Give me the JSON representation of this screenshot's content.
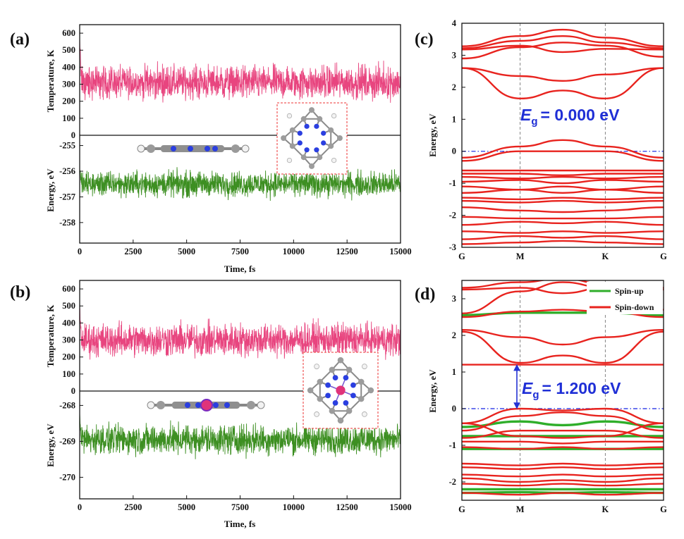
{
  "colors": {
    "temperature": "#e8457f",
    "energy": "#3d8f22",
    "band": "#e8231e",
    "spin_up": "#2fae2a",
    "gap_text": "#1f2fd6",
    "fermi_line": "#3a47e8",
    "arrow": "#2332d4",
    "box": "#ee3333"
  },
  "chart_data": [
    {
      "id": "a",
      "panel_label": "(a)",
      "type": "line",
      "xlabel": "Time, fs",
      "xlim": [
        0,
        15000
      ],
      "xticks": [
        "0",
        "2500",
        "5000",
        "7500",
        "10000",
        "12500",
        "15000"
      ],
      "subplots": [
        {
          "ylabel": "Temperature, K",
          "ylim": [
            0,
            650
          ],
          "yticks": [
            "0",
            "100",
            "200",
            "300",
            "400",
            "500",
            "600"
          ],
          "series": [
            {
              "name": "Temperature",
              "mean": 310,
              "spread": 130,
              "initial": 560
            }
          ]
        },
        {
          "ylabel": "Energy, eV",
          "ylim": [
            -258.8,
            -254.6
          ],
          "yticks": [
            "-255",
            "-256",
            "-257",
            "-258"
          ],
          "series": [
            {
              "name": "Energy",
              "mean": -256.5,
              "spread": 0.65,
              "initial": -255.9
            }
          ]
        }
      ]
    },
    {
      "id": "b",
      "panel_label": "(b)",
      "type": "line",
      "xlabel": "Time, fs",
      "xlim": [
        0,
        15000
      ],
      "xticks": [
        "0",
        "2500",
        "5000",
        "7500",
        "10000",
        "12500",
        "15000"
      ],
      "subplots": [
        {
          "ylabel": "Temperature, K",
          "ylim": [
            0,
            650
          ],
          "yticks": [
            "0",
            "100",
            "200",
            "300",
            "400",
            "500",
            "600"
          ],
          "series": [
            {
              "name": "Temperature",
              "mean": 300,
              "spread": 130,
              "initial": 470
            }
          ]
        },
        {
          "ylabel": "Energy, eV",
          "ylim": [
            -270.6,
            -267.6
          ],
          "yticks": [
            "-268",
            "-269",
            "-270"
          ],
          "series": [
            {
              "name": "Energy",
              "mean": -268.95,
              "spread": 0.55,
              "initial": -268.2
            }
          ]
        }
      ]
    },
    {
      "id": "c",
      "panel_label": "(c)",
      "type": "line",
      "ylabel": "Energy, eV",
      "ylim": [
        -3,
        4
      ],
      "yticks": [
        "4",
        "3",
        "2",
        "1",
        "0",
        "-1",
        "-2",
        "-3"
      ],
      "kpoints": [
        "G",
        "M",
        "K",
        "G"
      ],
      "kpos": [
        0,
        0.289,
        0.711,
        1
      ],
      "gap_label": "= 0.000 eV",
      "gap_symbol": "E",
      "gap_subscript": "g",
      "bands": [
        {
          "spin": "down",
          "values": [
            3.28,
            3.6,
            3.8,
            3.55,
            3.28
          ]
        },
        {
          "spin": "down",
          "values": [
            3.22,
            3.45,
            3.6,
            3.4,
            3.22
          ]
        },
        {
          "spin": "down",
          "values": [
            3.18,
            3.3,
            3.1,
            3.2,
            3.18
          ]
        },
        {
          "spin": "down",
          "values": [
            2.9,
            3.25,
            3.4,
            3.3,
            2.95
          ]
        },
        {
          "spin": "down",
          "values": [
            2.6,
            2.35,
            2.2,
            2.4,
            2.6
          ]
        },
        {
          "spin": "down",
          "values": [
            2.6,
            1.65,
            1.9,
            1.65,
            2.6
          ]
        },
        {
          "spin": "down",
          "values": [
            -0.2,
            0.15,
            0.35,
            0.15,
            -0.2
          ]
        },
        {
          "spin": "down",
          "values": [
            -0.3,
            0,
            0,
            0,
            -0.3
          ]
        },
        {
          "spin": "down",
          "values": [
            -0.6,
            -0.6,
            -0.6,
            -0.6,
            -0.6
          ]
        },
        {
          "spin": "down",
          "values": [
            -0.7,
            -0.7,
            -0.75,
            -0.7,
            -0.7
          ]
        },
        {
          "spin": "down",
          "values": [
            -0.8,
            -0.85,
            -0.8,
            -0.85,
            -0.8
          ]
        },
        {
          "spin": "down",
          "values": [
            -0.95,
            -0.9,
            -1.0,
            -0.9,
            -0.95
          ]
        },
        {
          "spin": "down",
          "values": [
            -1.1,
            -1.2,
            -1.1,
            -1.2,
            -1.1
          ]
        },
        {
          "spin": "down",
          "values": [
            -1.3,
            -1.2,
            -1.3,
            -1.2,
            -1.3
          ]
        },
        {
          "spin": "down",
          "values": [
            -1.45,
            -1.5,
            -1.45,
            -1.5,
            -1.45
          ]
        },
        {
          "spin": "down",
          "values": [
            -1.55,
            -1.6,
            -1.55,
            -1.6,
            -1.55
          ]
        },
        {
          "spin": "down",
          "values": [
            -1.75,
            -1.85,
            -1.9,
            -1.85,
            -1.75
          ]
        },
        {
          "spin": "down",
          "values": [
            -2.05,
            -2.1,
            -2.1,
            -2.1,
            -2.05
          ]
        },
        {
          "spin": "down",
          "values": [
            -2.3,
            -2.2,
            -2.25,
            -2.2,
            -2.3
          ]
        },
        {
          "spin": "down",
          "values": [
            -2.5,
            -2.55,
            -2.5,
            -2.55,
            -2.5
          ]
        },
        {
          "spin": "down",
          "values": [
            -2.75,
            -2.65,
            -2.7,
            -2.65,
            -2.75
          ]
        },
        {
          "spin": "down",
          "values": [
            -2.9,
            -2.85,
            -2.8,
            -2.85,
            -2.9
          ]
        }
      ]
    },
    {
      "id": "d",
      "panel_label": "(d)",
      "type": "line",
      "ylabel": "Energy, eV",
      "ylim": [
        -2.5,
        3.5
      ],
      "yticks": [
        "3",
        "2",
        "1",
        "0",
        "-1",
        "-2"
      ],
      "kpoints": [
        "G",
        "M",
        "K",
        "G"
      ],
      "kpos": [
        0,
        0.289,
        0.711,
        1
      ],
      "gap_label": "= 1.200 eV",
      "gap_symbol": "E",
      "gap_subscript": "g",
      "legend": [
        {
          "name": "Spin-up",
          "color": "#2fae2a"
        },
        {
          "name": "Spin-down",
          "color": "#e8231e"
        }
      ],
      "bands": [
        {
          "spin": "up",
          "values": [
            2.55,
            2.62,
            2.62,
            2.62,
            2.55
          ]
        },
        {
          "spin": "up",
          "values": [
            -0.75,
            -0.75,
            -0.75,
            -0.75,
            -0.75
          ]
        },
        {
          "spin": "up",
          "values": [
            -1.1,
            -1.1,
            -1.1,
            -1.1,
            -1.1
          ]
        },
        {
          "spin": "up",
          "values": [
            -0.5,
            -0.35,
            -0.45,
            -0.35,
            -0.5
          ]
        },
        {
          "spin": "up",
          "values": [
            -2.2,
            -2.2,
            -2.2,
            -2.2,
            -2.2
          ]
        },
        {
          "spin": "up",
          "values": [
            -2.3,
            -2.28,
            -2.3,
            -2.28,
            -2.3
          ]
        },
        {
          "spin": "down",
          "values": [
            3.3,
            3.45,
            3.55,
            3.4,
            3.3
          ]
        },
        {
          "spin": "down",
          "values": [
            3.25,
            3.3,
            3.15,
            3.3,
            3.25
          ]
        },
        {
          "spin": "down",
          "values": [
            2.6,
            3.2,
            3.45,
            3.3,
            2.7
          ]
        },
        {
          "spin": "down",
          "values": [
            2.5,
            2.65,
            2.7,
            2.65,
            2.5
          ]
        },
        {
          "spin": "down",
          "values": [
            2.15,
            1.95,
            1.75,
            1.95,
            2.15
          ]
        },
        {
          "spin": "down",
          "values": [
            2.1,
            1.25,
            1.45,
            1.25,
            2.1
          ]
        },
        {
          "spin": "down",
          "values": [
            1.2,
            1.2,
            1.2,
            1.2,
            1.2
          ]
        },
        {
          "spin": "down",
          "values": [
            -0.4,
            0,
            -0.05,
            0,
            -0.4
          ]
        },
        {
          "spin": "down",
          "values": [
            -0.6,
            -0.2,
            -0.1,
            -0.2,
            -0.6
          ]
        },
        {
          "spin": "down",
          "values": [
            -0.8,
            -0.6,
            -0.6,
            -0.6,
            -0.8
          ]
        },
        {
          "spin": "down",
          "values": [
            -0.4,
            -0.75,
            -0.8,
            -0.75,
            -0.4
          ]
        },
        {
          "spin": "down",
          "values": [
            -0.9,
            -0.9,
            -0.95,
            -0.9,
            -0.9
          ]
        },
        {
          "spin": "down",
          "values": [
            -1.05,
            -1.1,
            -1.05,
            -1.1,
            -1.05
          ]
        },
        {
          "spin": "down",
          "values": [
            -1.5,
            -1.55,
            -1.5,
            -1.55,
            -1.5
          ]
        },
        {
          "spin": "down",
          "values": [
            -1.6,
            -1.65,
            -1.6,
            -1.65,
            -1.6
          ]
        },
        {
          "spin": "down",
          "values": [
            -1.8,
            -1.85,
            -1.8,
            -1.85,
            -1.8
          ]
        },
        {
          "spin": "down",
          "values": [
            -1.9,
            -2.0,
            -1.95,
            -2.0,
            -1.9
          ]
        },
        {
          "spin": "down",
          "values": [
            -2.05,
            -2.1,
            -2.05,
            -2.1,
            -2.05
          ]
        },
        {
          "spin": "down",
          "values": [
            -2.3,
            -2.35,
            -2.3,
            -2.35,
            -2.3
          ]
        }
      ]
    }
  ]
}
